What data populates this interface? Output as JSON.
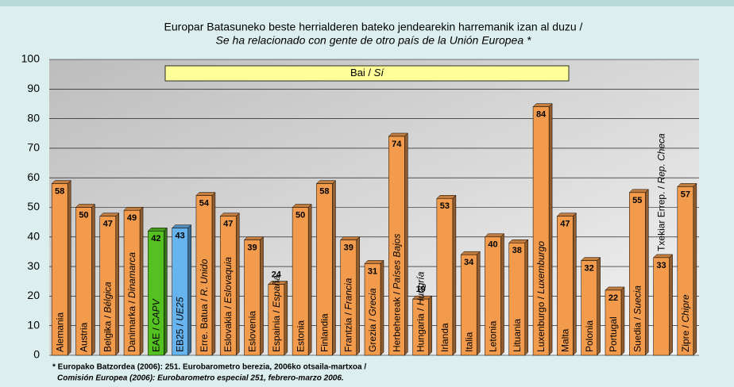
{
  "chart_data": {
    "type": "bar",
    "title": "Europar Batasuneko beste herrialderen bateko jendearekin harremanik izan al duzu /",
    "subtitle": "Se ha relacionado con gente de otro país de la Unión Europea *",
    "categories": [
      "Alemania",
      "Austria",
      "Belgika / Bélgica",
      "Danimarka / Dinamarca",
      "EAE / CAPV",
      "EB25 / UE25",
      "Erre. Batua / R. Unido",
      "Eslovakia / Eslovaquia",
      "Eslovenia",
      "Espainia / España",
      "Estonia",
      "Finlandia",
      "Frantzia / Francia",
      "Grezia / Grecia",
      "Herbehereak / Países Bajos",
      "Hungaria / Hungría",
      "Irlanda",
      "Italia",
      "Letonia",
      "Lituania",
      "Luxenburgo / Luxemburgo",
      "Malta",
      "Polonia",
      "Portugal",
      "Suedia / Suecia",
      "Txekiar Errep. / Rep. Checa",
      "Zipre / Chipre"
    ],
    "series": [
      {
        "name": "Bai / Sí",
        "color": "#f39b4c",
        "values": [
          58,
          50,
          47,
          49,
          42,
          43,
          54,
          47,
          39,
          24,
          50,
          58,
          39,
          31,
          74,
          19,
          53,
          34,
          40,
          38,
          84,
          47,
          32,
          22,
          55,
          33,
          57
        ],
        "colors": [
          "#f39b4c",
          "#f39b4c",
          "#f39b4c",
          "#f39b4c",
          "#55c021",
          "#66b3ee",
          "#f39b4c",
          "#f39b4c",
          "#f39b4c",
          "#f39b4c",
          "#f39b4c",
          "#f39b4c",
          "#f39b4c",
          "#f39b4c",
          "#f39b4c",
          "#f39b4c",
          "#f39b4c",
          "#f39b4c",
          "#f39b4c",
          "#f39b4c",
          "#f39b4c",
          "#f39b4c",
          "#f39b4c",
          "#f39b4c",
          "#f39b4c",
          "#f39b4c",
          "#f39b4c"
        ]
      }
    ],
    "ylim": [
      0,
      100
    ],
    "yticks": [
      0,
      10,
      20,
      30,
      40,
      50,
      60,
      70,
      80,
      90,
      100
    ],
    "grid": true,
    "footnote": [
      "* Europako Batzordea (2006): 251. Eurobarometro berezia, 2006ko otsaila-martxoa /",
      "Comisión Europea (2006): Eurobarometro especial 251, febrero-marzo 2006."
    ]
  }
}
